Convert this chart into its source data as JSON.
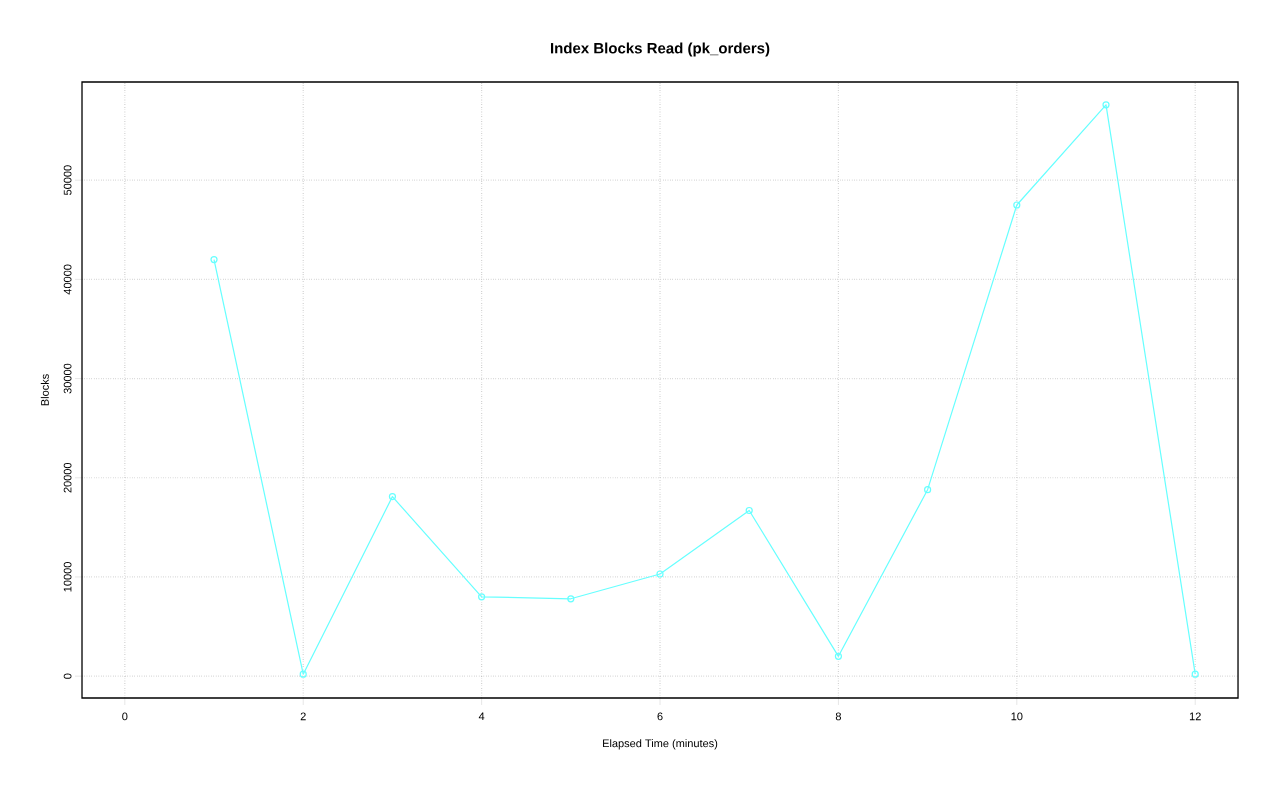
{
  "chart_data": {
    "type": "line",
    "title": "Index Blocks Read (pk_orders)",
    "xlabel": "Elapsed Time (minutes)",
    "ylabel": "Blocks",
    "x": [
      1,
      2,
      3,
      4,
      5,
      6,
      7,
      8,
      9,
      10,
      11,
      12
    ],
    "series": [
      {
        "color": "#66ffff",
        "values": [
          42000,
          200,
          18100,
          8000,
          7800,
          10300,
          16700,
          2000,
          18800,
          47500,
          57600,
          200
        ]
      }
    ],
    "xlim": [
      -0.48,
      12.48
    ],
    "ylim": [
      -2200,
      59900
    ],
    "xticks": [
      0,
      2,
      4,
      6,
      8,
      10,
      12
    ],
    "yticks": [
      0,
      10000,
      20000,
      30000,
      40000,
      50000
    ],
    "grid": true,
    "marker": "circle",
    "line_style": "solid"
  }
}
